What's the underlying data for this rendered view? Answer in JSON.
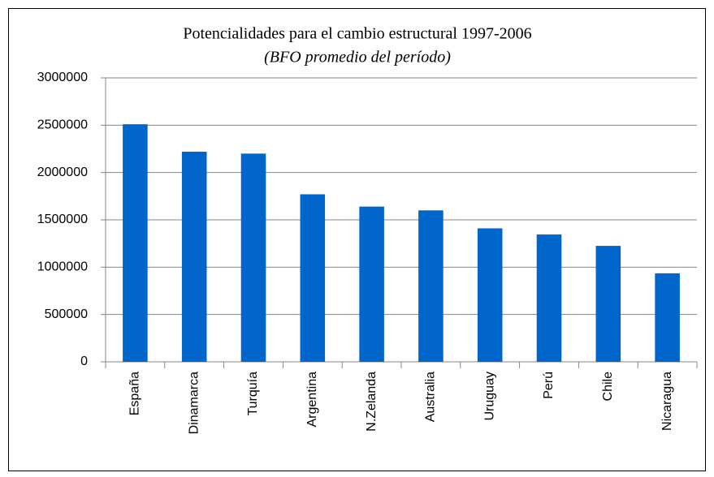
{
  "chart_data": {
    "type": "bar",
    "title": "Potencialidades para el cambio estructural 1997-2006",
    "subtitle": "(BFO promedio del período)",
    "categories": [
      "España",
      "Dinamarca",
      "Turquía",
      "Argentina",
      "N.Zelanda",
      "Australia",
      "Uruguay",
      "Perú",
      "Chile",
      "Nicaragua"
    ],
    "values": [
      2510000,
      2220000,
      2200000,
      1770000,
      1640000,
      1600000,
      1410000,
      1345000,
      1225000,
      935000
    ],
    "color": "#0066cc",
    "ylim": [
      0,
      3000000
    ],
    "yticks": [
      0,
      500000,
      1000000,
      1500000,
      2000000,
      2500000,
      3000000
    ],
    "grid": true
  }
}
